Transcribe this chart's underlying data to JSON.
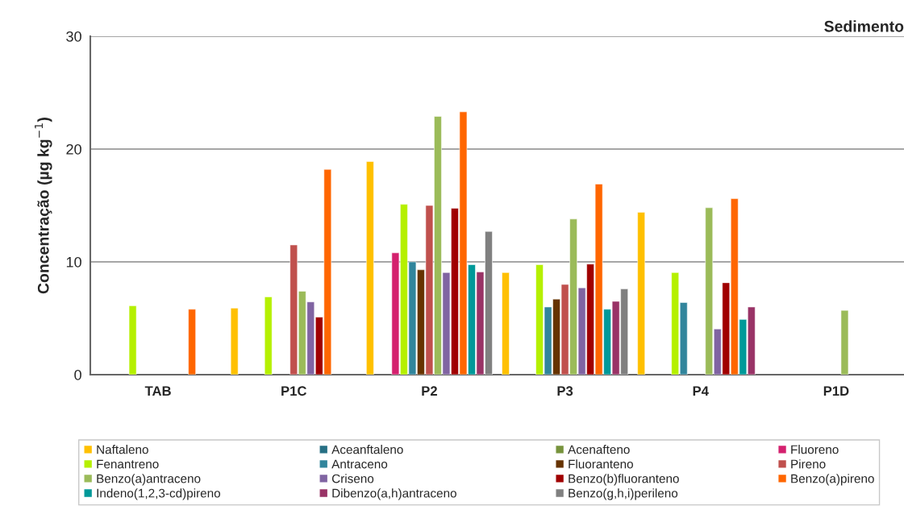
{
  "chart_data": {
    "type": "bar",
    "title": "Sedimento",
    "ylabel": "Concentração (µg kg$^{−1}$)",
    "categories": [
      "TAB",
      "P1C",
      "P2",
      "P3",
      "P4",
      "P1D"
    ],
    "ylim": [
      0,
      30
    ],
    "yticks": [
      0,
      10,
      20,
      30
    ],
    "grid": "y",
    "legend": "bottom",
    "series": [
      {
        "name": "Naftaleno",
        "color": "#ffc000",
        "values": [
          null,
          5.9,
          18.9,
          9.05,
          14.4,
          null
        ]
      },
      {
        "name": "Aceanftaleno",
        "color": "#266f84",
        "values": [
          null,
          null,
          null,
          null,
          null,
          null
        ]
      },
      {
        "name": "Acenafteno",
        "color": "#77933c",
        "values": [
          null,
          null,
          null,
          null,
          null,
          null
        ]
      },
      {
        "name": "Fluoreno",
        "color": "#d4206e",
        "values": [
          null,
          null,
          10.8,
          null,
          null,
          null
        ]
      },
      {
        "name": "Fenantreno",
        "color": "#b5f000",
        "values": [
          6.1,
          6.9,
          15.1,
          9.75,
          9.05,
          null
        ]
      },
      {
        "name": "Antraceno",
        "color": "#31859c",
        "values": [
          null,
          null,
          10.0,
          6.0,
          6.4,
          null
        ]
      },
      {
        "name": "Fluoranteno",
        "color": "#663300",
        "values": [
          null,
          null,
          9.3,
          6.7,
          null,
          null
        ]
      },
      {
        "name": "Pireno",
        "color": "#c0504d",
        "values": [
          null,
          11.5,
          15.0,
          8.0,
          null,
          null
        ]
      },
      {
        "name": "Benzo(a)antraceno",
        "color": "#9bbb59",
        "values": [
          null,
          7.4,
          22.9,
          13.8,
          14.8,
          5.7
        ]
      },
      {
        "name": "Criseno",
        "color": "#8064a2",
        "values": [
          null,
          6.45,
          9.05,
          7.7,
          4.05,
          null
        ]
      },
      {
        "name": "Benzo(b)fluoranteno",
        "color": "#a00000",
        "values": [
          null,
          5.1,
          14.75,
          9.8,
          8.15,
          null
        ]
      },
      {
        "name": "Benzo(a)pireno",
        "color": "#ff6600",
        "values": [
          5.8,
          18.2,
          23.3,
          16.9,
          15.6,
          null
        ]
      },
      {
        "name": "Indeno(1,2,3-cd)pireno",
        "color": "#009999",
        "values": [
          null,
          null,
          9.75,
          5.8,
          4.9,
          null
        ]
      },
      {
        "name": "Dibenzo(a,h)antraceno",
        "color": "#993366",
        "values": [
          null,
          null,
          9.1,
          6.5,
          6.0,
          null
        ]
      },
      {
        "name": "Benzo(g,h,i)perileno",
        "color": "#808080",
        "values": [
          null,
          null,
          12.7,
          7.6,
          null,
          null
        ]
      }
    ]
  }
}
